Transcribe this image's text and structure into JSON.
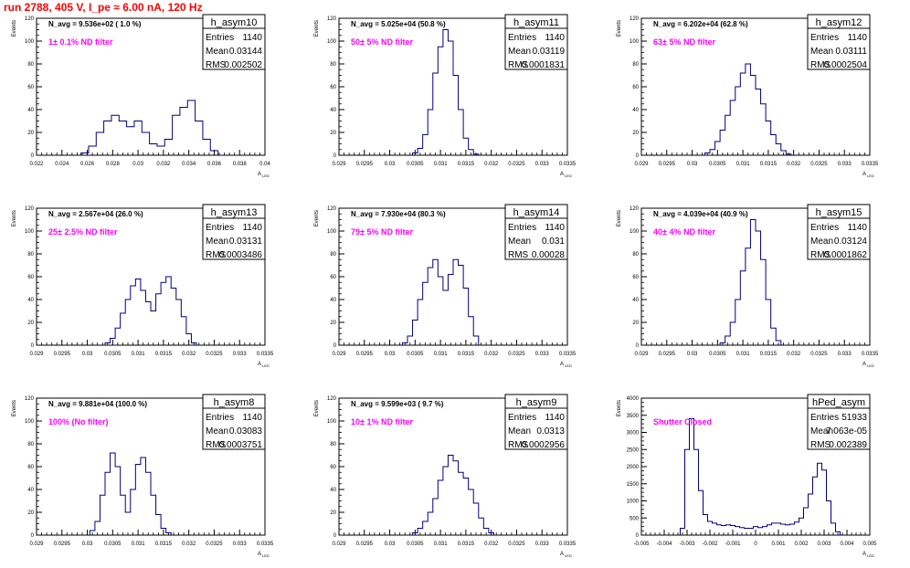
{
  "page": {
    "title": "run 2788,   405 V, I_pe ≈ 6.00 nA, 120 Hz",
    "title_color": "#ff0000"
  },
  "colors": {
    "line": "#000080",
    "filter_label": "#ff00ff",
    "axis": "#000000",
    "frame": "#000000"
  },
  "stats_labels": {
    "entries": "Entries",
    "mean": "Mean",
    "rms": "RMS"
  },
  "chart_data": [
    {
      "type": "histogram",
      "name": "h_asym10",
      "n_avg": "N_avg = 9.536e+02 ( 1.0 %)",
      "filter": "1± 0.1% ND filter",
      "entries": "1140",
      "mean": "0.03144",
      "rms": "0.002502",
      "xlim": [
        0.022,
        0.04
      ],
      "ylim": [
        0,
        120
      ],
      "xticks": [
        "0.022",
        "0.024",
        "0.026",
        "0.028",
        "0.03",
        "0.032",
        "0.034",
        "0.036",
        "0.038",
        "0.04"
      ],
      "yticks": [
        "0",
        "20",
        "40",
        "60",
        "80",
        "100",
        "120"
      ],
      "xlabel": "A",
      "xlabel_sub": "LED",
      "ylabel": "Events",
      "x": [
        0.0258,
        0.0264,
        0.027,
        0.0276,
        0.0282,
        0.0288,
        0.0294,
        0.03,
        0.0306,
        0.0312,
        0.0318,
        0.0324,
        0.033,
        0.0336,
        0.0342,
        0.0348,
        0.0354,
        0.036
      ],
      "y": [
        2,
        8,
        20,
        30,
        35,
        30,
        25,
        30,
        20,
        10,
        8,
        14,
        35,
        42,
        48,
        30,
        14,
        4
      ]
    },
    {
      "type": "histogram",
      "name": "h_asym11",
      "n_avg": "N_avg = 5.025e+04 (50.8 %)",
      "filter": "50± 5% ND filter",
      "entries": "1140",
      "mean": "0.03119",
      "rms": "0.0001831",
      "xlim": [
        0.029,
        0.0335
      ],
      "ylim": [
        0,
        120
      ],
      "xticks": [
        "0.029",
        "0.0295",
        "0.03",
        "0.0305",
        "0.031",
        "0.0315",
        "0.032",
        "0.0325",
        "0.033",
        "0.0335"
      ],
      "yticks": [
        "0",
        "20",
        "40",
        "60",
        "80",
        "100",
        "120"
      ],
      "xlabel": "A",
      "xlabel_sub": "LED",
      "ylabel": "Events",
      "x": [
        0.0305,
        0.0306,
        0.0307,
        0.0308,
        0.0309,
        0.031,
        0.0311,
        0.0312,
        0.0313,
        0.0314,
        0.0315,
        0.0316,
        0.0317
      ],
      "y": [
        2,
        6,
        18,
        40,
        72,
        95,
        110,
        100,
        70,
        40,
        15,
        5,
        1
      ]
    },
    {
      "type": "histogram",
      "name": "h_asym12",
      "n_avg": "N_avg = 6.202e+04 (62.8 %)",
      "filter": "63± 5% ND filter",
      "entries": "1140",
      "mean": "0.03111",
      "rms": "0.0002504",
      "xlim": [
        0.029,
        0.0335
      ],
      "ylim": [
        0,
        120
      ],
      "xticks": [
        "0.029",
        "0.0295",
        "0.03",
        "0.0305",
        "0.031",
        "0.0315",
        "0.032",
        "0.0325",
        "0.033",
        "0.0335"
      ],
      "yticks": [
        "0",
        "20",
        "40",
        "60",
        "80",
        "100",
        "120"
      ],
      "xlabel": "A",
      "xlabel_sub": "LED",
      "ylabel": "Events",
      "x": [
        0.0303,
        0.0304,
        0.0305,
        0.0306,
        0.0307,
        0.0308,
        0.0309,
        0.031,
        0.0311,
        0.0312,
        0.0313,
        0.0314,
        0.0315,
        0.0316,
        0.0317,
        0.0318,
        0.0319
      ],
      "y": [
        2,
        5,
        12,
        22,
        35,
        48,
        60,
        72,
        80,
        70,
        58,
        45,
        30,
        18,
        10,
        4,
        1
      ]
    },
    {
      "type": "histogram",
      "name": "h_asym13",
      "n_avg": "N_avg = 2.567e+04 (26.0 %)",
      "filter": "25± 2.5% ND filter",
      "entries": "1140",
      "mean": "0.03131",
      "rms": "0.0003486",
      "xlim": [
        0.029,
        0.0335
      ],
      "ylim": [
        0,
        120
      ],
      "xticks": [
        "0.029",
        "0.0295",
        "0.03",
        "0.0305",
        "0.031",
        "0.0315",
        "0.032",
        "0.0325",
        "0.033",
        "0.0335"
      ],
      "yticks": [
        "0",
        "20",
        "40",
        "60",
        "80",
        "100",
        "120"
      ],
      "xlabel": "A",
      "xlabel_sub": "LED",
      "ylabel": "Events",
      "x": [
        0.0304,
        0.0305,
        0.0306,
        0.0307,
        0.0308,
        0.0309,
        0.031,
        0.0311,
        0.0312,
        0.0313,
        0.0314,
        0.0315,
        0.0316,
        0.0317,
        0.0318,
        0.0319,
        0.032,
        0.0321
      ],
      "y": [
        2,
        6,
        15,
        28,
        40,
        52,
        58,
        48,
        38,
        30,
        45,
        55,
        60,
        50,
        40,
        25,
        10,
        2
      ]
    },
    {
      "type": "histogram",
      "name": "h_asym14",
      "n_avg": "N_avg = 7.930e+04 (80.3 %)",
      "filter": "79± 5% ND filter",
      "entries": "1140",
      "mean": "0.031",
      "rms": "0.00028",
      "xlim": [
        0.029,
        0.0335
      ],
      "ylim": [
        0,
        120
      ],
      "xticks": [
        "0.029",
        "0.0295",
        "0.03",
        "0.0305",
        "0.031",
        "0.0315",
        "0.032",
        "0.0325",
        "0.033",
        "0.0335"
      ],
      "yticks": [
        "0",
        "20",
        "40",
        "60",
        "80",
        "100",
        "120"
      ],
      "xlabel": "A",
      "xlabel_sub": "LED",
      "ylabel": "Events",
      "x": [
        0.0303,
        0.0304,
        0.0305,
        0.0306,
        0.0307,
        0.0308,
        0.0309,
        0.031,
        0.0311,
        0.0312,
        0.0313,
        0.0314,
        0.0315,
        0.0316,
        0.0317
      ],
      "y": [
        2,
        8,
        22,
        40,
        55,
        68,
        75,
        60,
        48,
        62,
        75,
        70,
        50,
        25,
        8
      ]
    },
    {
      "type": "histogram",
      "name": "h_asym15",
      "n_avg": "N_avg = 4.039e+04 (40.9 %)",
      "filter": "40± 4% ND filter",
      "entries": "1140",
      "mean": "0.03124",
      "rms": "0.0001862",
      "xlim": [
        0.029,
        0.0335
      ],
      "ylim": [
        0,
        120
      ],
      "xticks": [
        "0.029",
        "0.0295",
        "0.03",
        "0.0305",
        "0.031",
        "0.0315",
        "0.032",
        "0.0325",
        "0.033",
        "0.0335"
      ],
      "yticks": [
        "0",
        "20",
        "40",
        "60",
        "80",
        "100",
        "120"
      ],
      "xlabel": "A",
      "xlabel_sub": "LED",
      "ylabel": "Events",
      "x": [
        0.0306,
        0.0307,
        0.0308,
        0.0309,
        0.031,
        0.0311,
        0.0312,
        0.0313,
        0.0314,
        0.0315,
        0.0316,
        0.0317
      ],
      "y": [
        2,
        8,
        20,
        40,
        65,
        85,
        110,
        100,
        75,
        40,
        15,
        4
      ]
    },
    {
      "type": "histogram",
      "name": "h_asym8",
      "n_avg": "N_avg = 9.881e+04 (100.0 %)",
      "filter": "100% (No filter)",
      "entries": "1140",
      "mean": "0.03083",
      "rms": "0.0003751",
      "xlim": [
        0.029,
        0.0335
      ],
      "ylim": [
        0,
        120
      ],
      "xticks": [
        "0.029",
        "0.0295",
        "0.03",
        "0.0305",
        "0.031",
        "0.0315",
        "0.032",
        "0.0325",
        "0.033",
        "0.0335"
      ],
      "yticks": [
        "0",
        "20",
        "40",
        "60",
        "80",
        "100",
        "120"
      ],
      "xlabel": "A",
      "xlabel_sub": "LED",
      "ylabel": "Events",
      "x": [
        0.0301,
        0.0302,
        0.0303,
        0.0304,
        0.0305,
        0.0306,
        0.0307,
        0.0308,
        0.0309,
        0.031,
        0.0311,
        0.0312,
        0.0313,
        0.0314,
        0.0315,
        0.0316
      ],
      "y": [
        4,
        12,
        35,
        55,
        72,
        60,
        35,
        20,
        40,
        62,
        68,
        55,
        35,
        18,
        6,
        2
      ]
    },
    {
      "type": "histogram",
      "name": "h_asym9",
      "n_avg": "N_avg = 9.599e+03 ( 9.7 %)",
      "filter": "10± 1% ND filter",
      "entries": "1140",
      "mean": "0.0313",
      "rms": "0.0002956",
      "xlim": [
        0.029,
        0.0335
      ],
      "ylim": [
        0,
        120
      ],
      "xticks": [
        "0.029",
        "0.0295",
        "0.03",
        "0.0305",
        "0.031",
        "0.0315",
        "0.032",
        "0.0325",
        "0.033",
        "0.0335"
      ],
      "yticks": [
        "0",
        "20",
        "40",
        "60",
        "80",
        "100",
        "120"
      ],
      "xlabel": "A",
      "xlabel_sub": "LED",
      "ylabel": "Events",
      "x": [
        0.0305,
        0.0306,
        0.0307,
        0.0308,
        0.0309,
        0.031,
        0.0311,
        0.0312,
        0.0313,
        0.0314,
        0.0315,
        0.0316,
        0.0317,
        0.0318,
        0.0319,
        0.032
      ],
      "y": [
        2,
        6,
        12,
        20,
        32,
        48,
        60,
        70,
        65,
        55,
        50,
        40,
        28,
        15,
        6,
        2
      ]
    },
    {
      "type": "histogram",
      "name": "hPed_asym",
      "n_avg": "",
      "filter": "Shutter Closed",
      "entries": "51933",
      "mean": "7.063e-05",
      "rms": "0.002389",
      "xlim": [
        -0.005,
        0.005
      ],
      "ylim": [
        0,
        4000
      ],
      "xticks": [
        "-0.005",
        "-0.004",
        "-0.003",
        "-0.002",
        "-0.001",
        "0",
        "0.001",
        "0.002",
        "0.003",
        "0.004",
        "0.005"
      ],
      "yticks": [
        "0",
        "500",
        "1000",
        "1500",
        "2000",
        "2500",
        "3000",
        "3500",
        "4000"
      ],
      "xlabel": "A",
      "xlabel_sub": "LED",
      "ylabel": "Events",
      "x": [
        -0.0032,
        -0.003,
        -0.0028,
        -0.0026,
        -0.0024,
        -0.0022,
        -0.002,
        -0.0018,
        -0.0016,
        -0.0014,
        -0.0012,
        -0.001,
        -0.0008,
        -0.0006,
        -0.0004,
        -0.0002,
        0,
        0.0002,
        0.0004,
        0.0006,
        0.0008,
        0.001,
        0.0012,
        0.0014,
        0.0016,
        0.0018,
        0.002,
        0.0022,
        0.0024,
        0.0026,
        0.0028,
        0.003,
        0.0032,
        0.0034,
        0.0036
      ],
      "y": [
        200,
        2500,
        3400,
        2500,
        1300,
        600,
        400,
        350,
        300,
        280,
        300,
        280,
        250,
        220,
        200,
        200,
        250,
        220,
        250,
        300,
        350,
        350,
        320,
        300,
        320,
        380,
        500,
        800,
        1200,
        1700,
        2100,
        1900,
        1000,
        350,
        100
      ]
    }
  ]
}
